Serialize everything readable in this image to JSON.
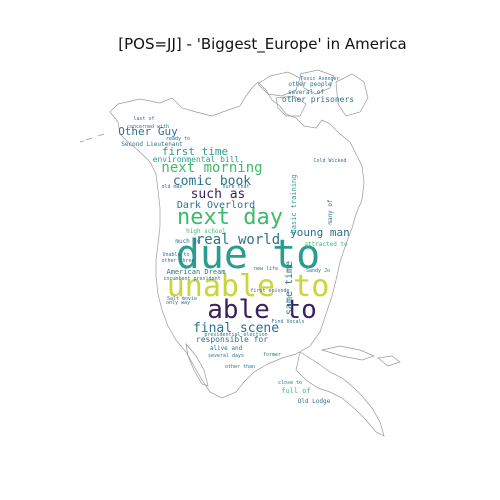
{
  "title": "[POS=JJ] - 'Biggest_Europe' in America",
  "colors": {
    "outline": "#9a9a9a",
    "yellow": "#c8d63a",
    "green": "#3dbb6a",
    "teal": "#2a9d8f",
    "blue": "#2c728e",
    "purple": "#3b1f5e",
    "navy": "#3b4d8a"
  },
  "words": [
    {
      "text": "due to",
      "color": "teal"
    },
    {
      "text": "unable to",
      "color": "yellow"
    },
    {
      "text": "able to",
      "color": "purple"
    },
    {
      "text": "next day",
      "color": "green"
    },
    {
      "text": "real world",
      "color": "blue"
    },
    {
      "text": "final scene",
      "color": "blue"
    },
    {
      "text": "next morning",
      "color": "green"
    },
    {
      "text": "comic book",
      "color": "blue"
    },
    {
      "text": "such as",
      "color": "purple"
    },
    {
      "text": "first time",
      "color": "teal"
    },
    {
      "text": "Other Guy",
      "color": "blue"
    },
    {
      "text": "Dark Overlord",
      "color": "blue"
    },
    {
      "text": "young man",
      "color": "blue"
    },
    {
      "text": "same time",
      "color": "blue"
    },
    {
      "text": "American Dream",
      "color": "blue"
    },
    {
      "text": "responsible for",
      "color": "blue"
    },
    {
      "text": "environmental bill",
      "color": "teal"
    },
    {
      "text": "Second Lieutenant",
      "color": "blue"
    },
    {
      "text": "other prisoners",
      "color": "blue"
    },
    {
      "text": "other people",
      "color": "blue"
    },
    {
      "text": "several of",
      "color": "blue"
    },
    {
      "text": "Toxic Avenger",
      "color": "blue"
    },
    {
      "text": "Old Lodge",
      "color": "blue"
    },
    {
      "text": "full of",
      "color": "green"
    },
    {
      "text": "alive and",
      "color": "blue"
    },
    {
      "text": "several days",
      "color": "blue"
    },
    {
      "text": "high school",
      "color": "green"
    },
    {
      "text": "much to",
      "color": "blue"
    },
    {
      "text": "basic training",
      "color": "teal"
    },
    {
      "text": "many of",
      "color": "blue"
    },
    {
      "text": "attracted to",
      "color": "green"
    },
    {
      "text": "other than",
      "color": "blue"
    },
    {
      "text": "presidential election",
      "color": "blue"
    },
    {
      "text": "incumbent president",
      "color": "blue"
    },
    {
      "text": "Unable to",
      "color": "blue"
    },
    {
      "text": "other three",
      "color": "blue"
    },
    {
      "text": "sure that",
      "color": "blue"
    },
    {
      "text": "old man",
      "color": "blue"
    },
    {
      "text": "new life",
      "color": "blue"
    },
    {
      "text": "last of",
      "color": "blue"
    },
    {
      "text": "close to",
      "color": "blue"
    },
    {
      "text": "Sandy Jo",
      "color": "blue"
    },
    {
      "text": "ready to",
      "color": "blue"
    },
    {
      "text": "only way",
      "color": "blue"
    },
    {
      "text": "former",
      "color": "blue"
    },
    {
      "text": "Cold Wicked",
      "color": "blue"
    },
    {
      "text": "Find Vocals",
      "color": "blue"
    },
    {
      "text": "first episode",
      "color": "blue"
    },
    {
      "text": "Salt movie",
      "color": "blue"
    },
    {
      "text": "concerned with",
      "color": "blue"
    }
  ]
}
